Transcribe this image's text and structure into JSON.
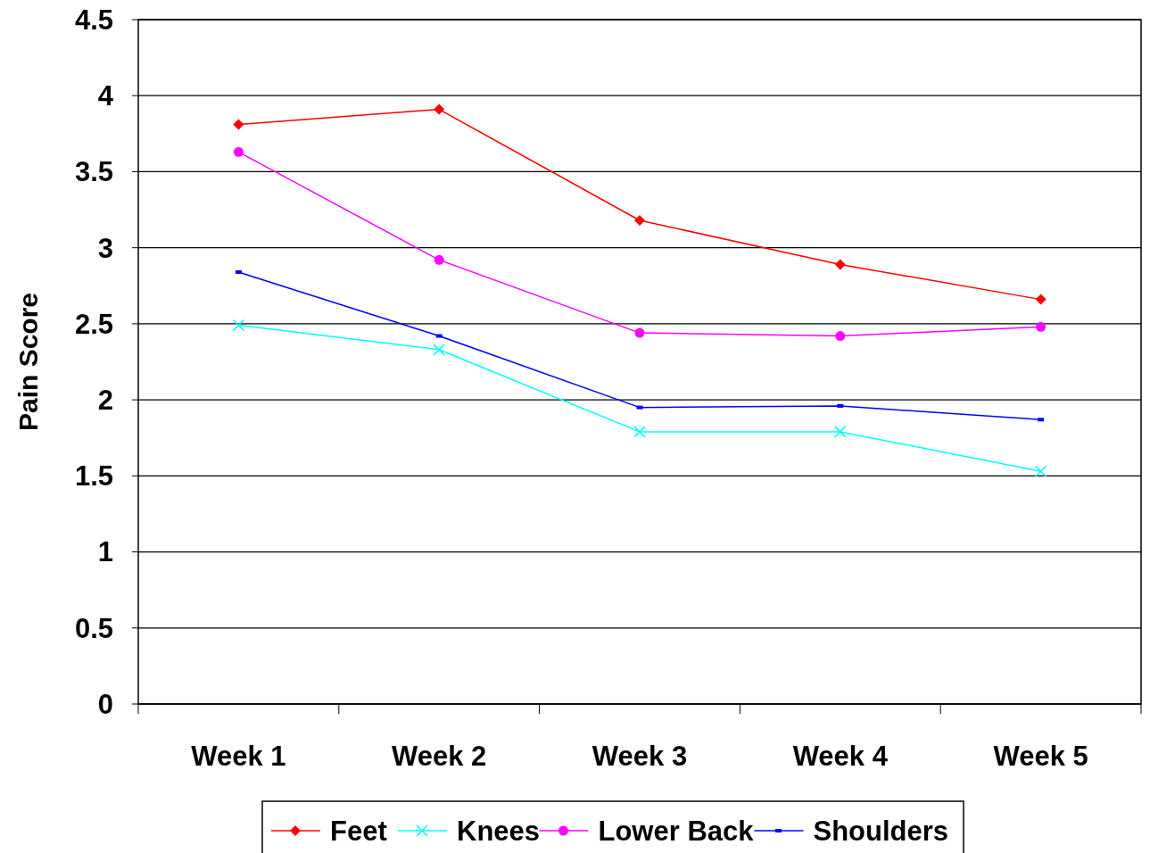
{
  "chart_data": {
    "type": "line",
    "ylabel": "Pain Score",
    "categories": [
      "Week 1",
      "Week 2",
      "Week 3",
      "Week 4",
      "Week 5"
    ],
    "series": [
      {
        "name": "Feet",
        "color": "#ff0000",
        "marker": "diamond",
        "values": [
          3.81,
          3.91,
          3.18,
          2.89,
          2.66
        ]
      },
      {
        "name": "Knees",
        "color": "#00ffff",
        "marker": "cross",
        "values": [
          2.49,
          2.33,
          1.79,
          1.79,
          1.53
        ]
      },
      {
        "name": "Lower Back",
        "color": "#ff00ff",
        "marker": "circle",
        "values": [
          3.63,
          2.92,
          2.44,
          2.42,
          2.48
        ]
      },
      {
        "name": "Shoulders",
        "color": "#0000ff",
        "marker": "square",
        "values": [
          2.84,
          2.42,
          1.95,
          1.96,
          1.87
        ]
      }
    ],
    "ylim": [
      0,
      4.5
    ],
    "yticks": [
      0,
      0.5,
      1,
      1.5,
      2,
      2.5,
      3,
      3.5,
      4,
      4.5
    ],
    "grid": "y",
    "legend": "bottom"
  }
}
